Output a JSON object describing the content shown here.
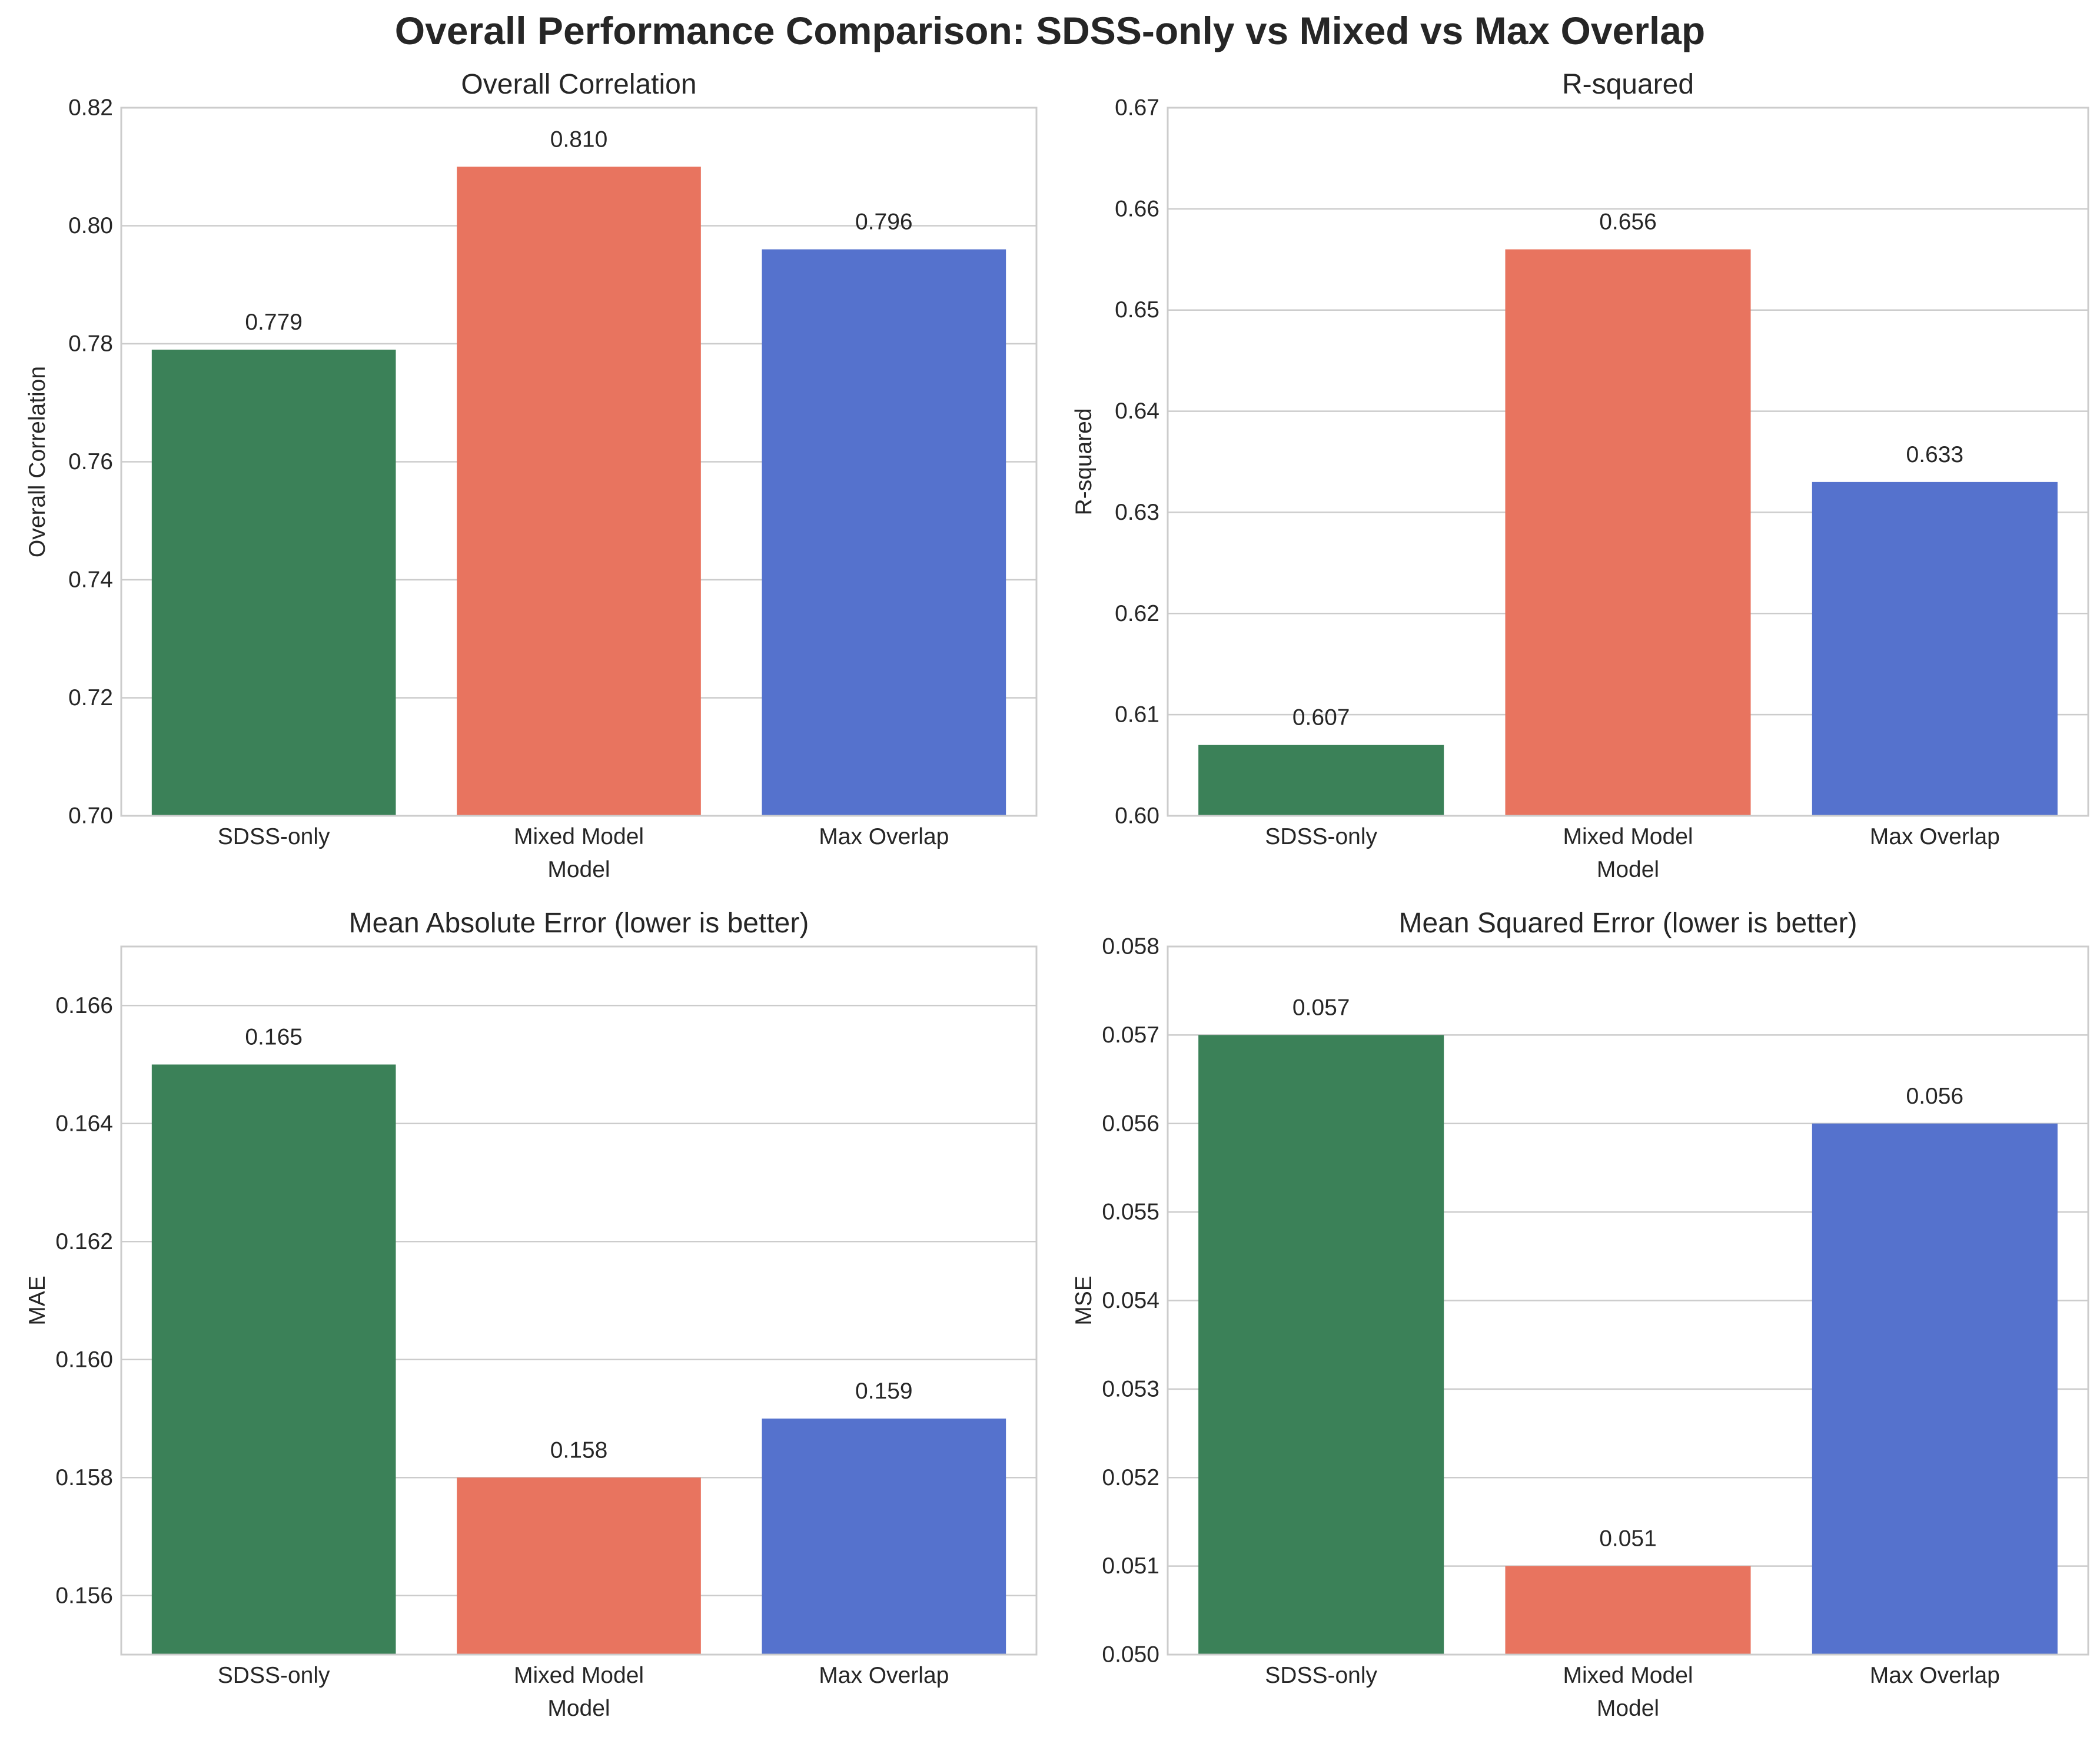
{
  "suptitle": "Overall Performance Comparison: SDSS-only vs Mixed vs Max Overlap",
  "colors": {
    "SDSS-only": "#3b8158",
    "Mixed Model": "#e8745f",
    "Max Overlap": "#5572cd",
    "grid": "#cccccc",
    "axes_edge": "#cccccc"
  },
  "chart_data": [
    {
      "type": "bar",
      "title": "Overall Correlation",
      "xlabel": "Model",
      "ylabel": "Overall Correlation",
      "categories": [
        "SDSS-only",
        "Mixed Model",
        "Max Overlap"
      ],
      "values": [
        0.779,
        0.81,
        0.796
      ],
      "value_labels": [
        "0.779",
        "0.810",
        "0.796"
      ],
      "ylim": [
        0.7,
        0.82
      ],
      "yticks": [
        "0.70",
        "0.72",
        "0.74",
        "0.76",
        "0.78",
        "0.80",
        "0.82"
      ],
      "ytick_values": [
        0.7,
        0.72,
        0.74,
        0.76,
        0.78,
        0.8,
        0.82
      ],
      "grid": true
    },
    {
      "type": "bar",
      "title": "R-squared",
      "xlabel": "Model",
      "ylabel": "R-squared",
      "categories": [
        "SDSS-only",
        "Mixed Model",
        "Max Overlap"
      ],
      "values": [
        0.607,
        0.656,
        0.633
      ],
      "value_labels": [
        "0.607",
        "0.656",
        "0.633"
      ],
      "ylim": [
        0.6,
        0.67
      ],
      "yticks": [
        "0.60",
        "0.61",
        "0.62",
        "0.63",
        "0.64",
        "0.65",
        "0.66",
        "0.67"
      ],
      "ytick_values": [
        0.6,
        0.61,
        0.62,
        0.63,
        0.64,
        0.65,
        0.66,
        0.67
      ],
      "grid": true
    },
    {
      "type": "bar",
      "title": "Mean Absolute Error (lower is better)",
      "xlabel": "Model",
      "ylabel": "MAE",
      "categories": [
        "SDSS-only",
        "Mixed Model",
        "Max Overlap"
      ],
      "values": [
        0.165,
        0.158,
        0.159
      ],
      "value_labels": [
        "0.165",
        "0.158",
        "0.159"
      ],
      "ylim": [
        0.155,
        0.167
      ],
      "yticks": [
        "0.156",
        "0.158",
        "0.160",
        "0.162",
        "0.164",
        "0.166"
      ],
      "ytick_values": [
        0.156,
        0.158,
        0.16,
        0.162,
        0.164,
        0.166
      ],
      "grid": true
    },
    {
      "type": "bar",
      "title": "Mean Squared Error (lower is better)",
      "xlabel": "Model",
      "ylabel": "MSE",
      "categories": [
        "SDSS-only",
        "Mixed Model",
        "Max Overlap"
      ],
      "values": [
        0.057,
        0.051,
        0.056
      ],
      "value_labels": [
        "0.057",
        "0.051",
        "0.056"
      ],
      "ylim": [
        0.05,
        0.058
      ],
      "yticks": [
        "0.050",
        "0.051",
        "0.052",
        "0.053",
        "0.054",
        "0.055",
        "0.056",
        "0.057",
        "0.058"
      ],
      "ytick_values": [
        0.05,
        0.051,
        0.052,
        0.053,
        0.054,
        0.055,
        0.056,
        0.057,
        0.058
      ],
      "grid": true
    }
  ]
}
